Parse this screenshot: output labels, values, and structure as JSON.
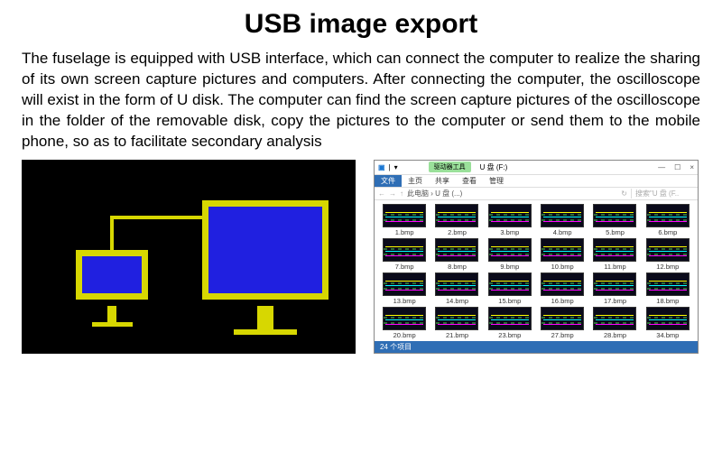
{
  "title": "USB image export",
  "body": "The fuselage is equipped with USB interface, which can connect the computer to realize the sharing of its own screen capture pictures and computers. After connecting the computer, the oscilloscope will exist in the form of U disk. The computer can find the screen capture pictures of the oscilloscope in the folder of the removable disk, copy the pictures to the computer or send them to the mobile phone, so as to facilitate secondary analysis",
  "diagram": {
    "background": "#000000",
    "screen_fill": "#2020e0",
    "frame_color": "#d7d701",
    "cable_color": "#d7d701"
  },
  "explorer": {
    "ribbon": {
      "icon": "▣",
      "pill": "驱动器工具",
      "drive_title": "U 盘 (F:)",
      "controls": [
        "—",
        "☐",
        "×"
      ]
    },
    "tabs": {
      "active": "文件",
      "others": [
        "主页",
        "共享",
        "查看",
        "管理"
      ]
    },
    "path": {
      "arrows": [
        "←",
        "→",
        "↑"
      ],
      "breadcrumb": "此电脑 › U 盘 (...)",
      "refresh": "↻",
      "search_placeholder": "搜索\"U 盘 (F.."
    },
    "files": [
      "1.bmp",
      "2.bmp",
      "3.bmp",
      "4.bmp",
      "5.bmp",
      "6.bmp",
      "7.bmp",
      "8.bmp",
      "9.bmp",
      "10.bmp",
      "11.bmp",
      "12.bmp",
      "13.bmp",
      "14.bmp",
      "15.bmp",
      "16.bmp",
      "17.bmp",
      "18.bmp",
      "20.bmp",
      "21.bmp",
      "23.bmp",
      "27.bmp",
      "28.bmp",
      "34.bmp"
    ],
    "status": "24 个项目"
  }
}
